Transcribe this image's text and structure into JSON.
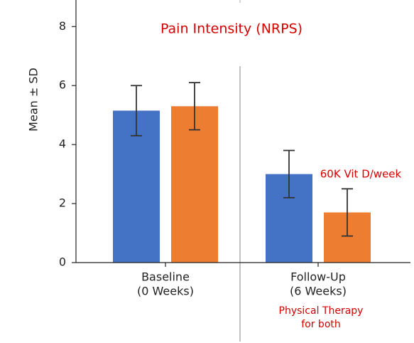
{
  "chart_data": {
    "type": "bar",
    "title": "Pain Intensity (NRPS)",
    "y_label": "Mean ± SD",
    "categories": [
      [
        "Baseline",
        "(0 Weeks)"
      ],
      [
        "Follow-Up",
        "(6 Weeks)"
      ]
    ],
    "series": [
      {
        "color": "#4472c4",
        "values": [
          5.15,
          3.0
        ],
        "errors": [
          0.85,
          0.8
        ]
      },
      {
        "color": "#ed7d31",
        "values": [
          5.3,
          1.7
        ],
        "errors": [
          0.8,
          0.8
        ]
      }
    ],
    "ylim": [
      0,
      8.9
    ],
    "yticks": [
      0,
      2,
      4,
      6,
      8
    ],
    "annotations": [
      [
        "60K Vit D/week"
      ],
      [
        "Physical Therapy",
        "for both"
      ]
    ]
  }
}
